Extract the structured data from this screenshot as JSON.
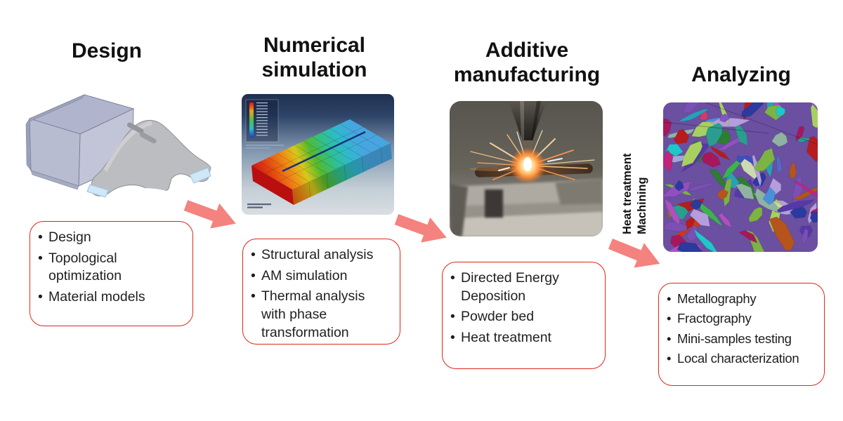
{
  "bullet_char": "•",
  "colors": {
    "arrow": "#f4827f",
    "box-border": "#e02619",
    "title-text": "#111111",
    "body-text": "#1f1f1f"
  },
  "stages": [
    {
      "title": "Design",
      "bullets": [
        "Design",
        "Topological\noptimization",
        "Material models"
      ]
    },
    {
      "title": "Numerical simulation",
      "bullets": [
        "Structural analysis",
        "AM simulation",
        "Thermal analysis\nwith phase\ntransformation"
      ]
    },
    {
      "title": "Additive manufacturing",
      "bullets": [
        "Directed Energy\nDeposition",
        "Powder bed",
        "Heat treatment"
      ]
    },
    {
      "title": "Analyzing",
      "bullets": [
        "Metallography",
        "Fractography",
        "Mini-samples testing",
        "Local characterization"
      ]
    }
  ],
  "between_label": {
    "lines": [
      "Heat treatment",
      "Machining"
    ]
  },
  "images": {
    "design": "cad-block-and-topology-optimized-bracket",
    "simulation": "fem-temperature-field-result",
    "manufacturing": "directed-energy-deposition-process-photo",
    "analyzing": "ebsd-grain-orientation-map"
  }
}
